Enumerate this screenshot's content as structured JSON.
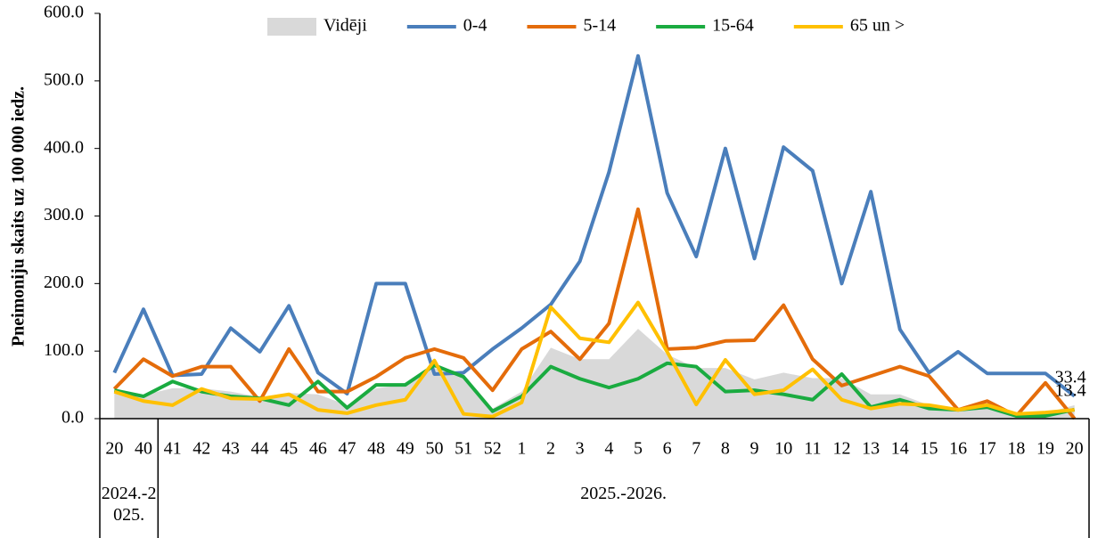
{
  "chart_data": {
    "type": "line",
    "y_label": "Pneimoniju skaits uz 100 000 iedz.",
    "categories": [
      "20",
      "40",
      "41",
      "42",
      "43",
      "44",
      "45",
      "46",
      "47",
      "48",
      "49",
      "50",
      "51",
      "52",
      "1",
      "2",
      "3",
      "4",
      "5",
      "6",
      "7",
      "8",
      "9",
      "10",
      "11",
      "12",
      "13",
      "14",
      "15",
      "16",
      "17",
      "18",
      "19",
      "20"
    ],
    "x_groups": [
      {
        "label": "2024.-2025.",
        "count": 2
      },
      {
        "label": "2025.-2026.",
        "count": 32
      }
    ],
    "ylim": [
      0,
      600
    ],
    "yticks": [
      {
        "value": 0,
        "label": "0.0"
      },
      {
        "value": 100,
        "label": "100.0"
      },
      {
        "value": 200,
        "label": "200.0"
      },
      {
        "value": 300,
        "label": "300.0"
      },
      {
        "value": 400,
        "label": "400.0"
      },
      {
        "value": 500,
        "label": "500.0"
      },
      {
        "value": 600,
        "label": "600.0"
      }
    ],
    "legend": "top",
    "series": [
      {
        "name": "Vidēji",
        "type": "area",
        "color": "#d9d9d9",
        "values": [
          37,
          35,
          45,
          45,
          40,
          32,
          38,
          36,
          20,
          45,
          50,
          75,
          60,
          15,
          40,
          105,
          88,
          88,
          133,
          95,
          75,
          75,
          58,
          68,
          60,
          60,
          36,
          36,
          20,
          15,
          18,
          5,
          8,
          20
        ]
      },
      {
        "name": "0-4",
        "color": "#4a7ebb",
        "values": [
          68,
          162,
          64,
          66,
          134,
          99,
          167,
          68,
          37,
          200,
          200,
          66,
          68,
          103,
          134,
          169,
          233,
          365,
          537,
          334,
          240,
          400,
          237,
          402,
          367,
          200,
          336,
          132,
          68,
          99,
          67,
          67,
          67,
          33.4
        ]
      },
      {
        "name": "5-14",
        "color": "#e46c0a",
        "values": [
          44,
          88,
          63,
          77,
          77,
          26,
          103,
          40,
          40,
          62,
          90,
          103,
          90,
          42,
          103,
          129,
          88,
          141,
          310,
          103,
          105,
          115,
          116,
          168,
          88,
          49,
          63,
          77,
          63,
          13,
          26,
          4,
          53,
          0
        ]
      },
      {
        "name": "15-64",
        "color": "#1aab40",
        "values": [
          42,
          33,
          55,
          40,
          33,
          30,
          20,
          55,
          16,
          50,
          50,
          79,
          62,
          11,
          33,
          77,
          59,
          46,
          59,
          82,
          77,
          40,
          42,
          36,
          28,
          66,
          17,
          28,
          15,
          13,
          17,
          4,
          4,
          13.4
        ]
      },
      {
        "name": "65 un >",
        "color": "#ffc000",
        "values": [
          40,
          26,
          20,
          44,
          30,
          29,
          36,
          13,
          8,
          20,
          28,
          86,
          7,
          3,
          24,
          165,
          119,
          113,
          172,
          99,
          21,
          87,
          36,
          42,
          73,
          28,
          15,
          22,
          20,
          13,
          20,
          7,
          9,
          13
        ]
      }
    ]
  }
}
